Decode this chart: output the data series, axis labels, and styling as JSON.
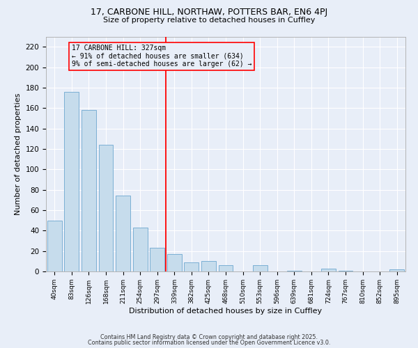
{
  "title1": "17, CARBONE HILL, NORTHAW, POTTERS BAR, EN6 4PJ",
  "title2": "Size of property relative to detached houses in Cuffley",
  "xlabel": "Distribution of detached houses by size in Cuffley",
  "ylabel": "Number of detached properties",
  "bar_labels": [
    "40sqm",
    "83sqm",
    "126sqm",
    "168sqm",
    "211sqm",
    "254sqm",
    "297sqm",
    "339sqm",
    "382sqm",
    "425sqm",
    "468sqm",
    "510sqm",
    "553sqm",
    "596sqm",
    "639sqm",
    "681sqm",
    "724sqm",
    "767sqm",
    "810sqm",
    "852sqm",
    "895sqm"
  ],
  "bar_values": [
    50,
    176,
    158,
    124,
    74,
    43,
    23,
    17,
    9,
    10,
    6,
    0,
    6,
    0,
    1,
    0,
    3,
    1,
    0,
    0,
    2
  ],
  "bar_color": "#c6dcec",
  "bar_edge_color": "#7bafd4",
  "vline_x_index": 7,
  "annotation_line1": "17 CARBONE HILL: 327sqm",
  "annotation_line2": "← 91% of detached houses are smaller (634)",
  "annotation_line3": "9% of semi-detached houses are larger (62) →",
  "ylim": [
    0,
    230
  ],
  "yticks": [
    0,
    20,
    40,
    60,
    80,
    100,
    120,
    140,
    160,
    180,
    200,
    220
  ],
  "bg_color": "#e8eef8",
  "grid_color": "#ffffff",
  "footer1": "Contains HM Land Registry data © Crown copyright and database right 2025.",
  "footer2": "Contains public sector information licensed under the Open Government Licence v3.0."
}
